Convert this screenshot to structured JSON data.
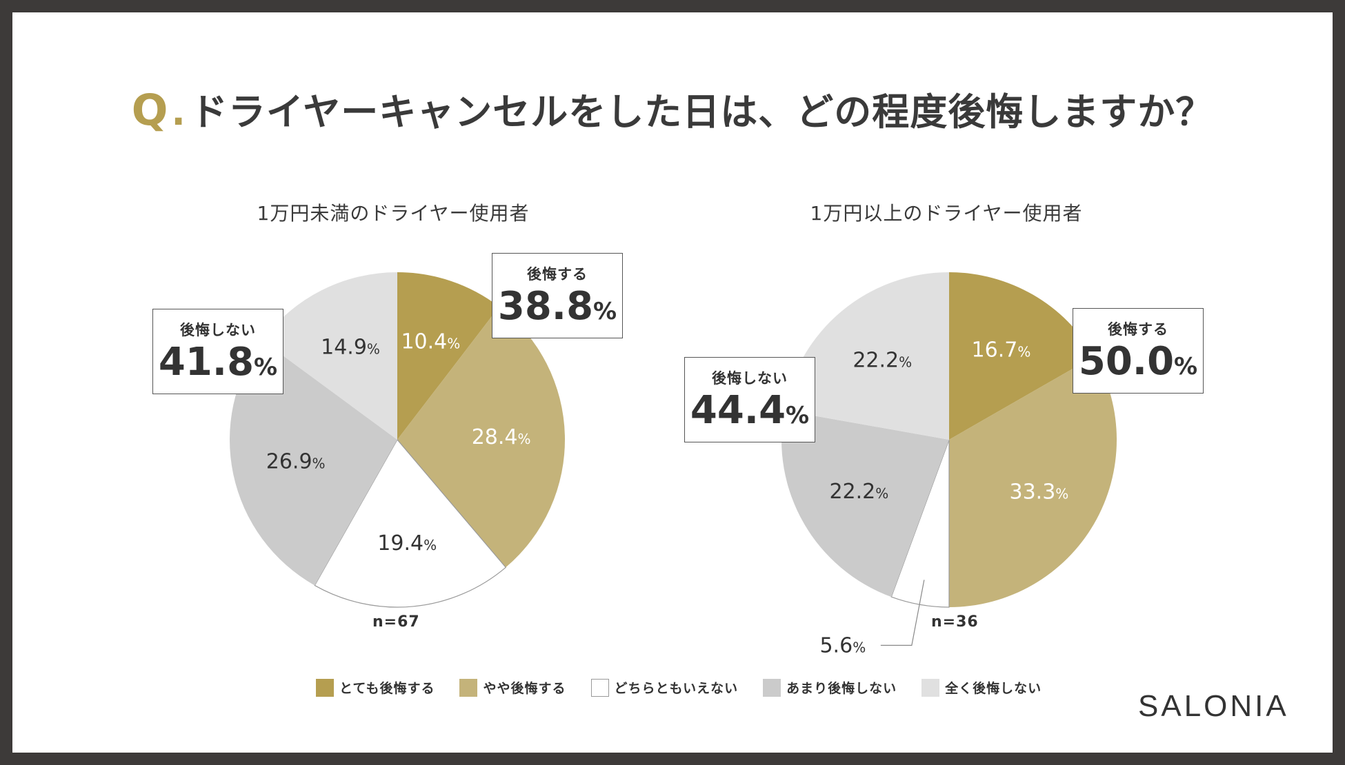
{
  "title": {
    "q": "Q",
    "dot": ".",
    "text": "ドライヤーキャンセルをした日は、どの程度後悔しますか？"
  },
  "chart_data": [
    {
      "type": "pie",
      "title": "1万円未満のドライヤー使用者",
      "categories": [
        "とても後悔する",
        "やや後悔する",
        "どちらともいえない",
        "あまり後悔しない",
        "全く後悔しない"
      ],
      "values": [
        10.4,
        28.4,
        19.4,
        26.9,
        14.9
      ],
      "value_labels": [
        "10.4",
        "28.4",
        "19.4",
        "26.9",
        "14.9"
      ],
      "n_label": "n=67",
      "callouts": [
        {
          "label": "後悔する",
          "value": "38.8"
        },
        {
          "label": "後悔しない",
          "value": "41.8"
        }
      ]
    },
    {
      "type": "pie",
      "title": "1万円以上のドライヤー使用者",
      "categories": [
        "とても後悔する",
        "やや後悔する",
        "どちらともいえない",
        "あまり後悔しない",
        "全く後悔しない"
      ],
      "values": [
        16.7,
        33.3,
        5.6,
        22.2,
        22.2
      ],
      "value_labels": [
        "16.7",
        "33.3",
        "5.6",
        "22.2",
        "22.2"
      ],
      "n_label": "n=36",
      "callouts": [
        {
          "label": "後悔する",
          "value": "50.0"
        },
        {
          "label": "後悔しない",
          "value": "44.4"
        }
      ]
    }
  ],
  "percent_sign": "%",
  "legend": [
    {
      "label": "とても後悔する",
      "color": "#b59e50"
    },
    {
      "label": "やや後悔する",
      "color": "#c4b37a"
    },
    {
      "label": "どちらともいえない",
      "color": "#ffffff"
    },
    {
      "label": "あまり後悔しない",
      "color": "#cbcbcb"
    },
    {
      "label": "全く後悔しない",
      "color": "#e0e0e0"
    }
  ],
  "slice_colors": [
    "#b59e50",
    "#c4b37a",
    "#ffffff",
    "#cbcbcb",
    "#e0e0e0"
  ],
  "brand": "SALONIA"
}
